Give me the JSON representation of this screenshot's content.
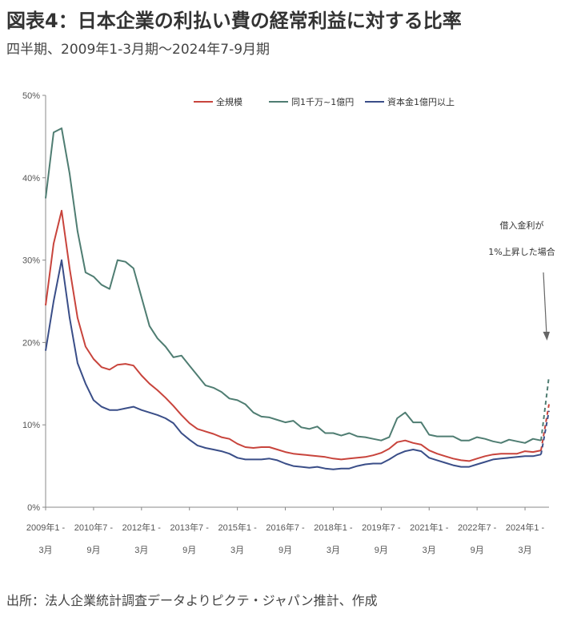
{
  "title": "図表4：日本企業の利払い費の経常利益に対する比率",
  "subtitle": "四半期、2009年1-3月期～2024年7-9月期",
  "source": "出所：法人企業統計調査データよりピクテ・ジャパン推計、作成",
  "chart_data": {
    "type": "line",
    "y_ticks": [
      "0%",
      "10%",
      "20%",
      "30%",
      "40%",
      "50%"
    ],
    "ylim": [
      0,
      50
    ],
    "x_tick_labels": [
      [
        "2009年1 -",
        "3月"
      ],
      [
        "2010年7 -",
        "9月"
      ],
      [
        "2012年1 -",
        "3月"
      ],
      [
        "2013年7 -",
        "9月"
      ],
      [
        "2015年1 -",
        "3月"
      ],
      [
        "2016年7 -",
        "9月"
      ],
      [
        "2018年1 -",
        "3月"
      ],
      [
        "2019年7 -",
        "9月"
      ],
      [
        "2021年1 -",
        "3月"
      ],
      [
        "2022年7 -",
        "9月"
      ],
      [
        "2024年1 -",
        "3月"
      ]
    ],
    "n_quarters": 63,
    "annotation": [
      "借入金利が",
      "1%上昇した場合"
    ],
    "series": [
      {
        "name": "全規模",
        "color": "#c8443c",
        "values": [
          24.5,
          32.0,
          36.0,
          29.0,
          23.0,
          19.5,
          18.0,
          17.0,
          16.7,
          17.3,
          17.4,
          17.2,
          16.0,
          15.0,
          14.2,
          13.3,
          12.3,
          11.2,
          10.2,
          9.5,
          9.2,
          8.9,
          8.5,
          8.3,
          7.7,
          7.3,
          7.2,
          7.3,
          7.3,
          7.0,
          6.7,
          6.5,
          6.4,
          6.3,
          6.2,
          6.1,
          5.9,
          5.8,
          5.9,
          6.0,
          6.1,
          6.3,
          6.6,
          7.1,
          7.9,
          8.1,
          7.8,
          7.6,
          6.9,
          6.5,
          6.2,
          5.9,
          5.7,
          5.6,
          5.9,
          6.2,
          6.4,
          6.5,
          6.5,
          6.5,
          6.8,
          6.7,
          6.9
        ],
        "projection": [
          6.9,
          12.5
        ]
      },
      {
        "name": "同1千万~1億円",
        "color": "#4f7d72",
        "values": [
          37.5,
          45.5,
          46.0,
          40.5,
          33.5,
          28.5,
          28.0,
          27.0,
          26.5,
          30.0,
          29.8,
          29.0,
          25.5,
          22.0,
          20.5,
          19.5,
          18.2,
          18.4,
          17.2,
          16.0,
          14.8,
          14.5,
          14.0,
          13.2,
          13.0,
          12.5,
          11.5,
          11.0,
          10.9,
          10.6,
          10.3,
          10.5,
          9.7,
          9.5,
          9.8,
          9.0,
          9.0,
          8.7,
          9.0,
          8.6,
          8.5,
          8.3,
          8.1,
          8.5,
          10.8,
          11.5,
          10.3,
          10.3,
          8.8,
          8.6,
          8.6,
          8.6,
          8.1,
          8.1,
          8.5,
          8.3,
          8.0,
          7.8,
          8.2,
          8.0,
          7.8,
          8.3,
          8.1
        ],
        "projection": [
          8.1,
          15.9
        ]
      },
      {
        "name": "資本金1億円以上",
        "color": "#3a4e88",
        "values": [
          19.0,
          25.0,
          30.0,
          23.0,
          17.5,
          15.0,
          13.0,
          12.2,
          11.8,
          11.8,
          12.0,
          12.2,
          11.8,
          11.5,
          11.2,
          10.8,
          10.2,
          9.0,
          8.2,
          7.5,
          7.2,
          7.0,
          6.8,
          6.5,
          6.0,
          5.8,
          5.8,
          5.8,
          5.9,
          5.7,
          5.3,
          5.0,
          4.9,
          4.8,
          4.9,
          4.7,
          4.6,
          4.7,
          4.7,
          5.0,
          5.2,
          5.3,
          5.3,
          5.8,
          6.4,
          6.8,
          7.0,
          6.8,
          6.0,
          5.7,
          5.4,
          5.1,
          4.9,
          4.9,
          5.2,
          5.5,
          5.8,
          5.9,
          6.0,
          6.1,
          6.2,
          6.2,
          6.4
        ],
        "projection": [
          6.4,
          11.7
        ]
      }
    ]
  }
}
